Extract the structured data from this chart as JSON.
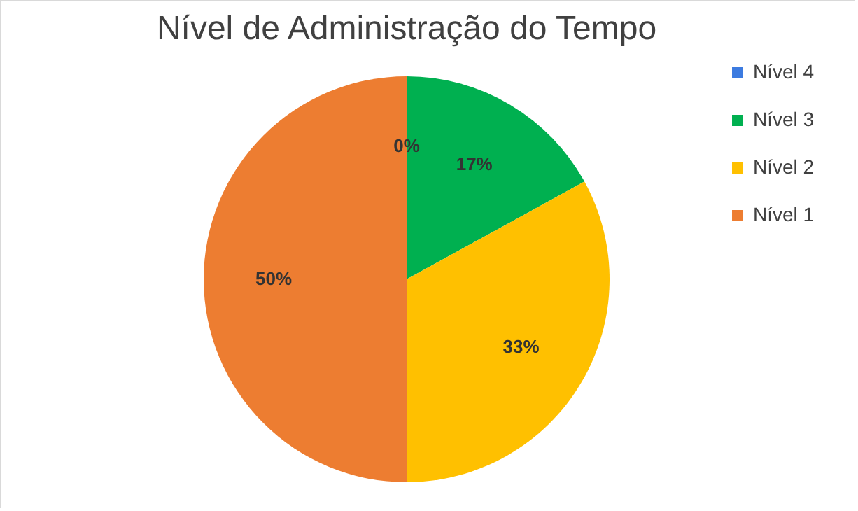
{
  "chart_data": {
    "type": "pie",
    "title": "Nível de Administração do Tempo",
    "categories": [
      "Nível 4",
      "Nível 3",
      "Nível 2",
      "Nível 1"
    ],
    "values": [
      0,
      17,
      33,
      50
    ],
    "colors": [
      "#3c7be0",
      "#00b050",
      "#ffc000",
      "#ed7d31"
    ],
    "value_labels": [
      "0%",
      "17%",
      "33%",
      "50%"
    ],
    "legend": "right"
  }
}
